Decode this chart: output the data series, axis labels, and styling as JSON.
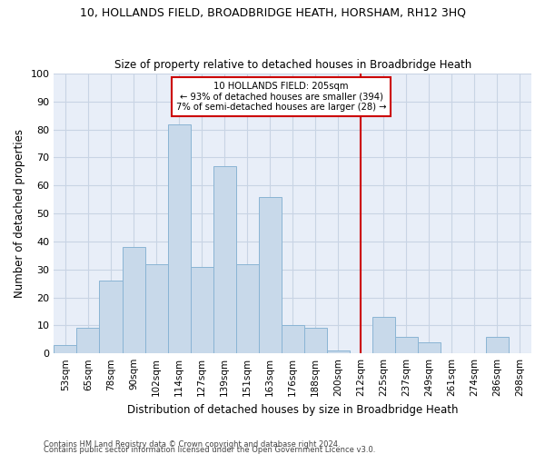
{
  "title1": "10, HOLLANDS FIELD, BROADBRIDGE HEATH, HORSHAM, RH12 3HQ",
  "title2": "Size of property relative to detached houses in Broadbridge Heath",
  "xlabel": "Distribution of detached houses by size in Broadbridge Heath",
  "ylabel": "Number of detached properties",
  "footnote1": "Contains HM Land Registry data © Crown copyright and database right 2024.",
  "footnote2": "Contains public sector information licensed under the Open Government Licence v3.0.",
  "categories": [
    "53sqm",
    "65sqm",
    "78sqm",
    "90sqm",
    "102sqm",
    "114sqm",
    "127sqm",
    "139sqm",
    "151sqm",
    "163sqm",
    "176sqm",
    "188sqm",
    "200sqm",
    "212sqm",
    "225sqm",
    "237sqm",
    "249sqm",
    "261sqm",
    "274sqm",
    "286sqm",
    "298sqm"
  ],
  "values": [
    3,
    9,
    26,
    38,
    32,
    82,
    31,
    67,
    32,
    56,
    10,
    9,
    1,
    0,
    13,
    6,
    4,
    0,
    0,
    6,
    0
  ],
  "bar_color": "#c8d9ea",
  "bar_edge_color": "#8ab4d4",
  "grid_color": "#c8d4e4",
  "background_color": "#e8eef8",
  "property_line_x": 13.0,
  "annotation_title": "10 HOLLANDS FIELD: 205sqm",
  "annotation_line1": "← 93% of detached houses are smaller (394)",
  "annotation_line2": "7% of semi-detached houses are larger (28) →",
  "annotation_box_color": "#cc0000",
  "ylim": [
    0,
    100
  ],
  "yticks": [
    0,
    10,
    20,
    30,
    40,
    50,
    60,
    70,
    80,
    90,
    100
  ]
}
